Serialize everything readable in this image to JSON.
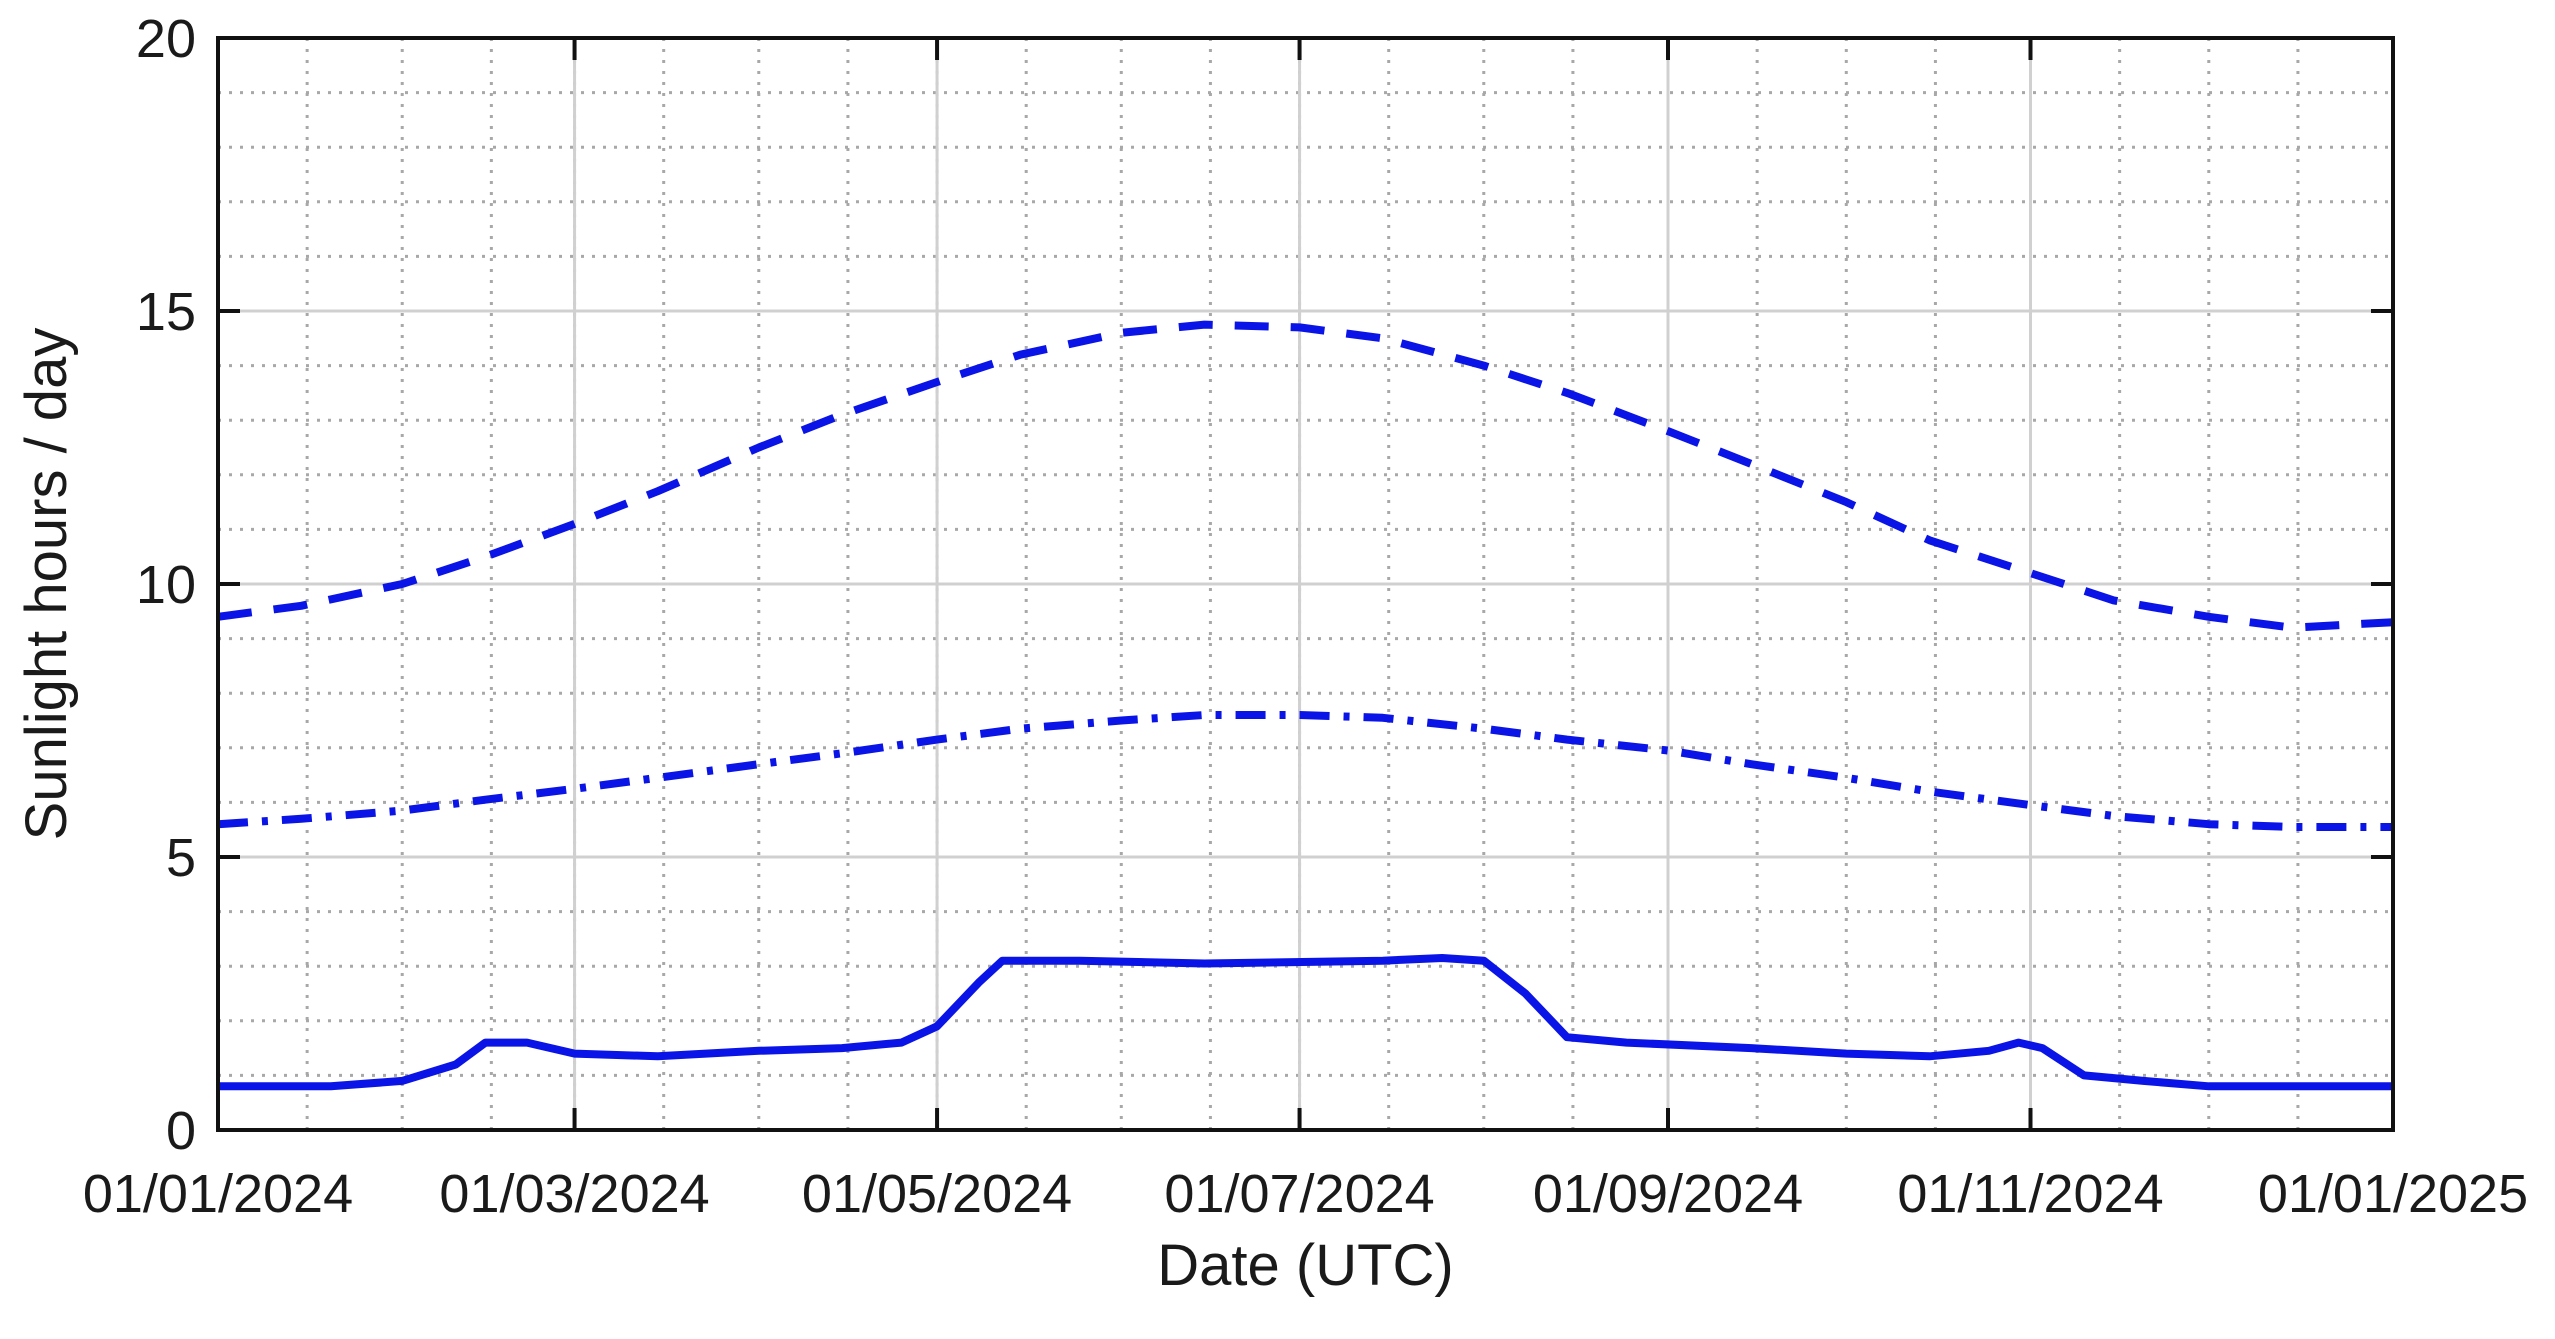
{
  "chart_data": {
    "type": "line",
    "title": "",
    "xlabel": "Date (UTC)",
    "ylabel": "Sunlight hours / day",
    "xlim": [
      "2024-01-01",
      "2025-01-01"
    ],
    "ylim": [
      0,
      20
    ],
    "x_ticks": [
      {
        "date": "2024-01-01",
        "label": "01/01/2024"
      },
      {
        "date": "2024-03-01",
        "label": "01/03/2024"
      },
      {
        "date": "2024-05-01",
        "label": "01/05/2024"
      },
      {
        "date": "2024-07-01",
        "label": "01/07/2024"
      },
      {
        "date": "2024-09-01",
        "label": "01/09/2024"
      },
      {
        "date": "2024-11-01",
        "label": "01/11/2024"
      },
      {
        "date": "2025-01-01",
        "label": "01/01/2025"
      }
    ],
    "y_ticks": [
      {
        "value": 0,
        "label": "0"
      },
      {
        "value": 5,
        "label": "5"
      },
      {
        "value": 10,
        "label": "10"
      },
      {
        "value": 15,
        "label": "15"
      },
      {
        "value": 20,
        "label": "20"
      }
    ],
    "grid": true,
    "minor_grid": true,
    "legend": false,
    "series": [
      {
        "style": "dashed",
        "color": "#0a14e6",
        "points": [
          [
            "2024-01-01",
            9.4
          ],
          [
            "2024-01-15",
            9.6
          ],
          [
            "2024-02-01",
            10.0
          ],
          [
            "2024-02-15",
            10.5
          ],
          [
            "2024-03-01",
            11.1
          ],
          [
            "2024-03-15",
            11.7
          ],
          [
            "2024-04-01",
            12.5
          ],
          [
            "2024-04-15",
            13.1
          ],
          [
            "2024-05-01",
            13.7
          ],
          [
            "2024-05-15",
            14.2
          ],
          [
            "2024-06-01",
            14.6
          ],
          [
            "2024-06-15",
            14.75
          ],
          [
            "2024-07-01",
            14.7
          ],
          [
            "2024-07-15",
            14.5
          ],
          [
            "2024-08-01",
            14.0
          ],
          [
            "2024-08-15",
            13.5
          ],
          [
            "2024-09-01",
            12.8
          ],
          [
            "2024-09-15",
            12.2
          ],
          [
            "2024-10-01",
            11.5
          ],
          [
            "2024-10-15",
            10.8
          ],
          [
            "2024-11-01",
            10.2
          ],
          [
            "2024-11-15",
            9.7
          ],
          [
            "2024-12-01",
            9.4
          ],
          [
            "2024-12-15",
            9.2
          ],
          [
            "2025-01-01",
            9.3
          ]
        ]
      },
      {
        "style": "dash-dot",
        "color": "#0a14e6",
        "points": [
          [
            "2024-01-01",
            5.6
          ],
          [
            "2024-01-15",
            5.7
          ],
          [
            "2024-02-01",
            5.85
          ],
          [
            "2024-02-15",
            6.05
          ],
          [
            "2024-03-01",
            6.25
          ],
          [
            "2024-03-15",
            6.45
          ],
          [
            "2024-04-01",
            6.7
          ],
          [
            "2024-04-15",
            6.9
          ],
          [
            "2024-05-01",
            7.15
          ],
          [
            "2024-05-15",
            7.35
          ],
          [
            "2024-06-01",
            7.5
          ],
          [
            "2024-06-15",
            7.6
          ],
          [
            "2024-07-01",
            7.6
          ],
          [
            "2024-07-15",
            7.55
          ],
          [
            "2024-08-01",
            7.35
          ],
          [
            "2024-08-15",
            7.15
          ],
          [
            "2024-09-01",
            6.95
          ],
          [
            "2024-09-15",
            6.7
          ],
          [
            "2024-10-01",
            6.45
          ],
          [
            "2024-10-15",
            6.2
          ],
          [
            "2024-11-01",
            5.95
          ],
          [
            "2024-11-15",
            5.75
          ],
          [
            "2024-12-01",
            5.6
          ],
          [
            "2024-12-15",
            5.55
          ],
          [
            "2025-01-01",
            5.55
          ]
        ]
      },
      {
        "style": "solid",
        "color": "#0a14e6",
        "points": [
          [
            "2024-01-01",
            0.8
          ],
          [
            "2024-01-20",
            0.8
          ],
          [
            "2024-02-01",
            0.9
          ],
          [
            "2024-02-10",
            1.2
          ],
          [
            "2024-02-15",
            1.6
          ],
          [
            "2024-02-22",
            1.6
          ],
          [
            "2024-03-01",
            1.4
          ],
          [
            "2024-03-15",
            1.35
          ],
          [
            "2024-04-01",
            1.45
          ],
          [
            "2024-04-15",
            1.5
          ],
          [
            "2024-04-25",
            1.6
          ],
          [
            "2024-05-01",
            1.9
          ],
          [
            "2024-05-08",
            2.7
          ],
          [
            "2024-05-12",
            3.1
          ],
          [
            "2024-05-25",
            3.1
          ],
          [
            "2024-06-15",
            3.05
          ],
          [
            "2024-07-15",
            3.1
          ],
          [
            "2024-07-25",
            3.15
          ],
          [
            "2024-08-01",
            3.1
          ],
          [
            "2024-08-08",
            2.5
          ],
          [
            "2024-08-15",
            1.7
          ],
          [
            "2024-08-25",
            1.6
          ],
          [
            "2024-09-15",
            1.5
          ],
          [
            "2024-10-01",
            1.4
          ],
          [
            "2024-10-15",
            1.35
          ],
          [
            "2024-10-25",
            1.45
          ],
          [
            "2024-10-30",
            1.6
          ],
          [
            "2024-11-03",
            1.5
          ],
          [
            "2024-11-10",
            1.0
          ],
          [
            "2024-11-20",
            0.9
          ],
          [
            "2024-12-01",
            0.8
          ],
          [
            "2024-12-15",
            0.8
          ],
          [
            "2025-01-01",
            0.8
          ]
        ]
      }
    ]
  }
}
